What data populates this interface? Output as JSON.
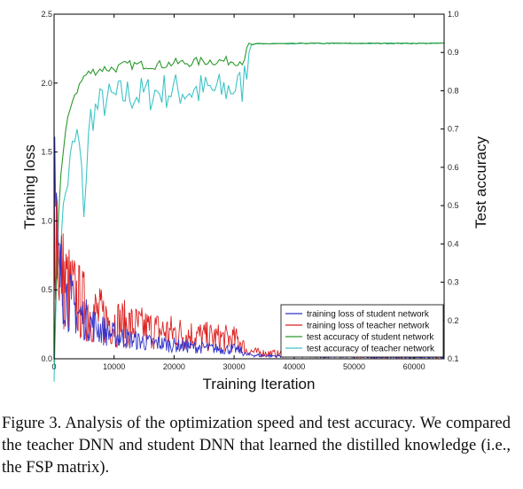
{
  "chart_data": {
    "type": "line",
    "xlabel": "Training Iteration",
    "ylabel_left": "Training loss",
    "ylabel_right": "Test accuracy",
    "xlim": [
      0,
      65000
    ],
    "ylim_left": [
      0.0,
      2.5
    ],
    "ylim_right": [
      0.1,
      1.0
    ],
    "x_ticks": [
      "0",
      "10000",
      "20000",
      "30000",
      "40000",
      "50000",
      "60000"
    ],
    "y_left_ticks": [
      "0.0",
      "0.5",
      "1.0",
      "1.5",
      "2.0",
      "2.5"
    ],
    "y_right_ticks": [
      "0.1",
      "0.2",
      "0.3",
      "0.4",
      "0.5",
      "0.6",
      "0.7",
      "0.8",
      "0.9",
      "1.0"
    ],
    "grid": false,
    "legend_position": "bottom-right",
    "series": [
      {
        "name": "training loss of student network",
        "axis": "left",
        "color": "#3333cc",
        "x": [
          0,
          300,
          800,
          1500,
          2500,
          4000,
          6000,
          8000,
          10000,
          12000,
          15000,
          18000,
          20000,
          22000,
          25000,
          28000,
          30000,
          31000,
          32000,
          34000,
          38000,
          42000,
          46000,
          50000,
          55000,
          60000,
          65000
        ],
        "values": [
          1.45,
          0.95,
          0.62,
          0.52,
          0.42,
          0.33,
          0.26,
          0.21,
          0.17,
          0.15,
          0.12,
          0.11,
          0.1,
          0.09,
          0.08,
          0.07,
          0.07,
          0.06,
          0.03,
          0.025,
          0.02,
          0.018,
          0.015,
          0.015,
          0.012,
          0.012,
          0.01
        ]
      },
      {
        "name": "training loss of teacher network",
        "axis": "left",
        "color": "#dd2222",
        "x": [
          0,
          300,
          800,
          1500,
          2500,
          4000,
          6000,
          8000,
          10000,
          12000,
          15000,
          18000,
          20000,
          22000,
          25000,
          28000,
          30000,
          31000,
          32000,
          34000,
          38000,
          42000,
          46000,
          50000,
          55000,
          60000,
          65000
        ],
        "values": [
          1.55,
          1.1,
          0.7,
          0.58,
          0.5,
          0.42,
          0.35,
          0.3,
          0.27,
          0.25,
          0.22,
          0.2,
          0.19,
          0.18,
          0.16,
          0.15,
          0.14,
          0.13,
          0.06,
          0.045,
          0.035,
          0.03,
          0.025,
          0.022,
          0.02,
          0.02,
          0.018
        ]
      },
      {
        "name": "test accuracy of student network",
        "axis": "right",
        "color": "#2a9a2a",
        "x": [
          0,
          600,
          1200,
          2000,
          3000,
          4000,
          5000,
          6000,
          8000,
          10000,
          12000,
          15000,
          18000,
          20000,
          22000,
          25000,
          28000,
          30000,
          31500,
          32500,
          34000,
          38000,
          42000,
          46000,
          50000,
          55000,
          60000,
          65000
        ],
        "values": [
          0.1,
          0.45,
          0.6,
          0.7,
          0.78,
          0.81,
          0.84,
          0.85,
          0.86,
          0.86,
          0.87,
          0.87,
          0.87,
          0.875,
          0.875,
          0.88,
          0.88,
          0.88,
          0.88,
          0.92,
          0.923,
          0.923,
          0.924,
          0.924,
          0.924,
          0.924,
          0.924,
          0.924
        ]
      },
      {
        "name": "test accuracy of teacher network",
        "axis": "right",
        "color": "#3fc4c8",
        "x": [
          0,
          600,
          1200,
          2000,
          3000,
          4000,
          5000,
          6000,
          8000,
          10000,
          12000,
          15000,
          18000,
          20000,
          22000,
          25000,
          28000,
          30000,
          31500,
          32500,
          34000,
          38000,
          42000,
          46000,
          50000,
          55000,
          60000,
          65000
        ],
        "values": [
          0.1,
          0.35,
          0.45,
          0.55,
          0.65,
          0.7,
          0.5,
          0.74,
          0.78,
          0.79,
          0.8,
          0.8,
          0.81,
          0.81,
          0.81,
          0.81,
          0.81,
          0.82,
          0.82,
          0.92,
          0.923,
          0.923,
          0.924,
          0.924,
          0.924,
          0.924,
          0.924,
          0.924
        ]
      }
    ]
  },
  "caption": "Figure 3. Analysis of the optimization speed and test accuracy. We compared the teacher DNN and student DNN that learned the distilled knowledge (i.e., the FSP matrix)."
}
